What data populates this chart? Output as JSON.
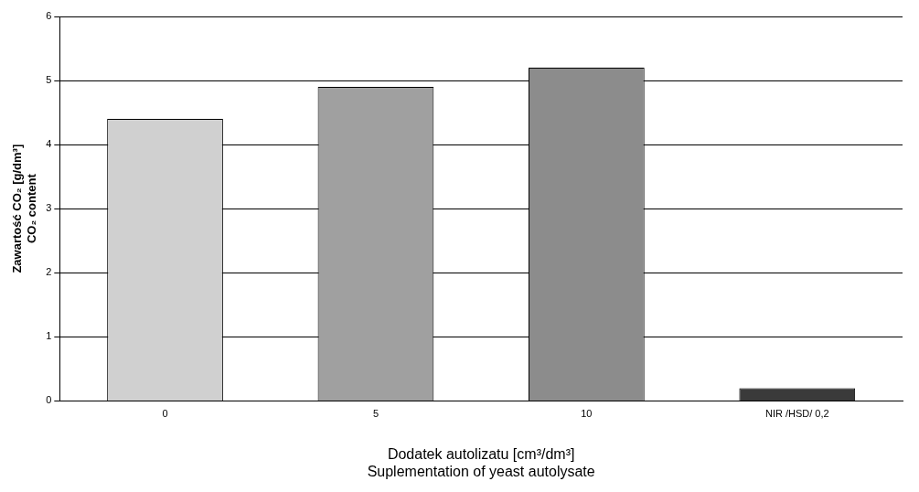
{
  "chart_data": {
    "type": "bar",
    "categories": [
      "0",
      "5",
      "10",
      "NIR /HSD/ 0,2"
    ],
    "values": [
      4.4,
      4.9,
      5.2,
      0.2
    ],
    "colors": [
      "#d0d0d0",
      "#a0a0a0",
      "#8c8c8c",
      "#3a3a3a"
    ],
    "xlabel": "Dodatek autolizatu [cm³/dm³]\nSuplementation of yeast autolysate",
    "ylabel": "Zawartość CO₂ [g/dm³]\nCO₂ content",
    "ylim": [
      0,
      6
    ],
    "yticks": [
      0,
      1,
      2,
      3,
      4,
      5,
      6
    ],
    "grid": "y",
    "legend": false
  }
}
